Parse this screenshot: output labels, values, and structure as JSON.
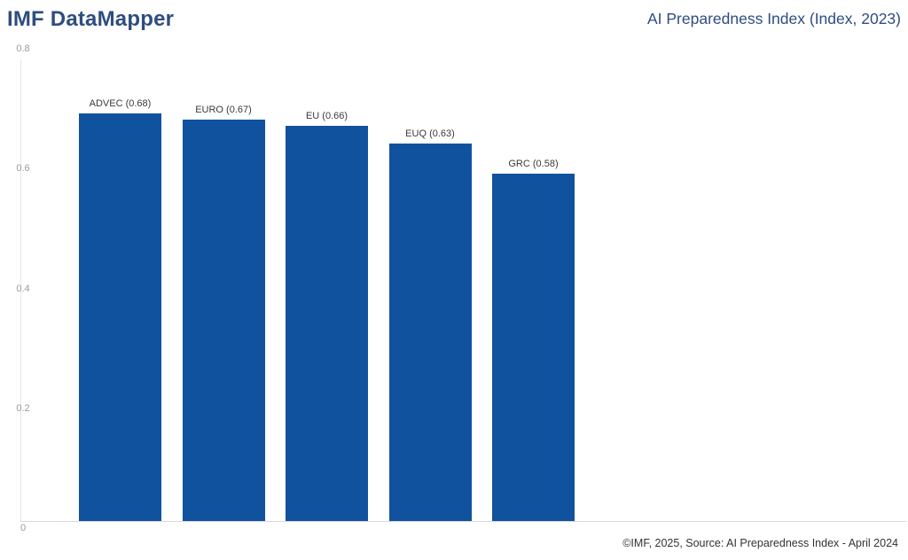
{
  "header": {
    "app_title": "IMF DataMapper",
    "chart_title": "AI Preparedness Index (Index, 2023)"
  },
  "footer": {
    "attribution": "©IMF, 2025, Source: AI Preparedness Index - April 2024"
  },
  "chart_data": {
    "type": "bar",
    "title": "AI Preparedness Index (Index, 2023)",
    "categories": [
      "ADVEC",
      "EURO",
      "EU",
      "EUQ",
      "GRC"
    ],
    "values": [
      0.68,
      0.67,
      0.66,
      0.63,
      0.58
    ],
    "bar_labels": [
      "ADVEC (0.68)",
      "EURO (0.67)",
      "EU (0.66)",
      "EUQ (0.63)",
      "GRC (0.58)"
    ],
    "xlabel": "",
    "ylabel": "",
    "ylim": [
      0,
      0.8
    ],
    "yticks": [
      0,
      0.2,
      0.4,
      0.6,
      0.8
    ],
    "ytick_labels": [
      "0",
      "0.2",
      "0.4",
      "0.6",
      "0.8"
    ],
    "grid": false,
    "legend_position": "none"
  },
  "colors": {
    "title_text": "#2E4D80",
    "bar_fill": "#11529E",
    "axis_line": "#D9D9D9",
    "tick_label": "#9A9A9A",
    "bar_label": "#3A3A3A",
    "footer_text": "#333333"
  }
}
